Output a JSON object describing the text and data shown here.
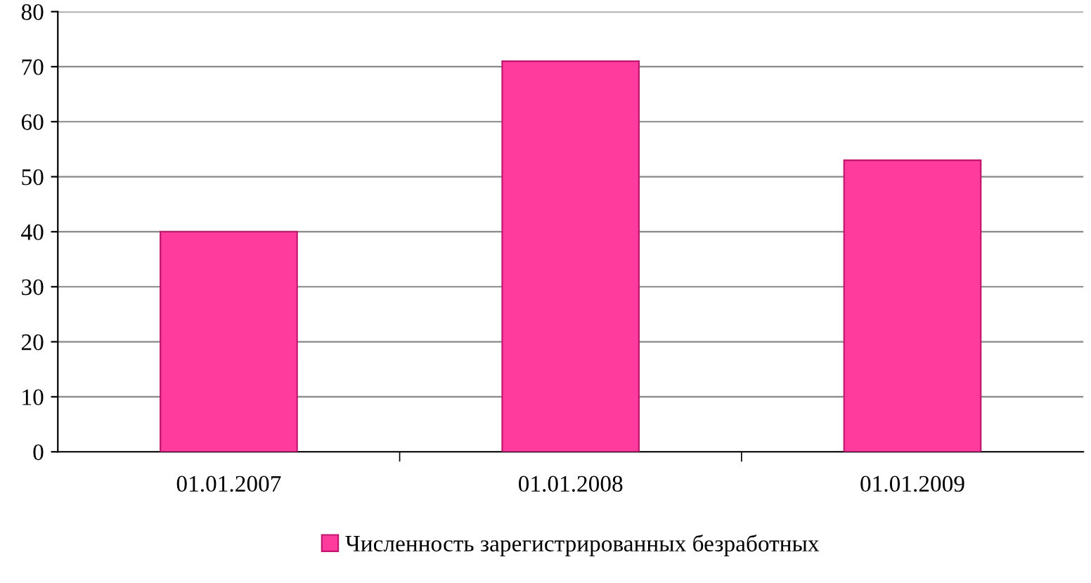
{
  "chart_data": {
    "type": "bar",
    "categories": [
      "01.01.2007",
      "01.01.2008",
      "01.01.2009"
    ],
    "series": [
      {
        "name": "Численность зарегистрированных безработных",
        "color": "#ff3b9d",
        "values": [
          40,
          71,
          53
        ]
      }
    ],
    "ylim": [
      0,
      80
    ],
    "yticks": [
      0,
      10,
      20,
      30,
      40,
      50,
      60,
      70,
      80
    ],
    "grid": "y",
    "legend": "bottom"
  }
}
